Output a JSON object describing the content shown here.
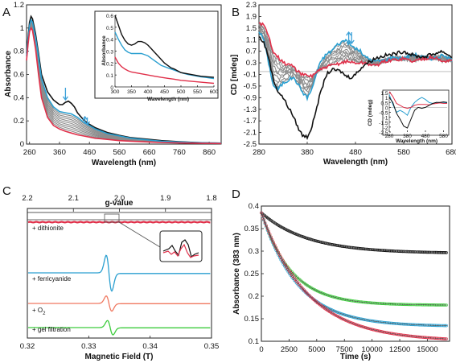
{
  "panels": {
    "A": {
      "label": "A",
      "xlabel": "Wavelength (nm)",
      "ylabel": "Absorbance",
      "xticks": [
        "260",
        "360",
        "460",
        "560",
        "660",
        "760",
        "860"
      ],
      "yticks": [
        "0",
        "0.2",
        "0.4",
        "0.6",
        "0.8",
        "1",
        "1.2"
      ],
      "inset": {
        "xlabel": "Wavelength (nm)",
        "ylabel": "Absorbance",
        "xticks": [
          "300",
          "350",
          "400",
          "450",
          "500",
          "550",
          "600"
        ],
        "yticks": [
          "0",
          "0.1",
          "0.2",
          "0.3",
          "0.4",
          "0.5",
          "0.6"
        ]
      }
    },
    "B": {
      "label": "B",
      "xlabel": "Wavelength (nm)",
      "ylabel": "CD [mdeg]",
      "xticks": [
        "280",
        "380",
        "480",
        "580",
        "680"
      ],
      "yticks": [
        "2.3",
        "1.9",
        "1.5",
        "1.1",
        "0.7",
        "0.3",
        "-0.1",
        "-0.5",
        "-0.9",
        "-1.3",
        "-1.7",
        "-2.1",
        "-2.5"
      ],
      "inset": {
        "xlabel": "Wavelength (nm)",
        "ylabel": "CD (mdeg)",
        "xticks": [
          "280",
          "380",
          "480",
          "580"
        ],
        "yticks": [
          "1.5",
          "1",
          "0.5",
          "0",
          "-0.5",
          "-1",
          "-1.5",
          "-2",
          "-2.5"
        ]
      }
    },
    "C": {
      "label": "C",
      "top_axis_label": "g-value",
      "top_ticks": [
        "2.2",
        "2.1",
        "2.0",
        "1.9",
        "1.8"
      ],
      "xlabel": "Magnetic Field (T)",
      "xticks": [
        "0.32",
        "0.33",
        "0.34",
        "0.35"
      ],
      "traces": [
        {
          "label": "+ dithionite",
          "color": "#c0283c"
        },
        {
          "label": "+ ferricyanide",
          "color": "#2a9fd0"
        },
        {
          "label": "+ O",
          "sub": "2",
          "color": "#f07860"
        },
        {
          "label": "+ gel filtration",
          "color": "#3ccc3c"
        }
      ]
    },
    "D": {
      "label": "D",
      "xlabel": "Time (s)",
      "ylabel": "Absorbance (383 nm)",
      "xticks": [
        "0",
        "2500",
        "5000",
        "7500",
        "10000",
        "12500",
        "15000"
      ],
      "yticks": [
        "0.1",
        "0.15",
        "0.2",
        "0.25",
        "0.3",
        "0.35",
        "0.4"
      ]
    }
  },
  "colors": {
    "black": "#111111",
    "gray": "#8c8c8c",
    "blue": "#2a9fd0",
    "red": "#e0304a",
    "green": "#3ccc3c",
    "salmon": "#f07860",
    "arrow": "#3aa0d8"
  },
  "chart_data": [
    {
      "panel": "A",
      "type": "line",
      "xlim": [
        250,
        900
      ],
      "ylim": [
        0,
        1.2
      ],
      "series": [
        {
          "color": "black",
          "x": [
            250,
            255,
            260,
            265,
            270,
            280,
            290,
            300,
            320,
            340,
            360,
            370,
            380,
            390,
            400,
            410,
            420,
            440,
            460,
            480,
            500,
            520,
            560,
            600,
            660,
            700,
            760,
            800,
            860,
            900
          ],
          "y": [
            0.78,
            0.92,
            1.05,
            1.1,
            1.08,
            0.95,
            0.78,
            0.6,
            0.45,
            0.38,
            0.34,
            0.34,
            0.36,
            0.37,
            0.35,
            0.32,
            0.27,
            0.21,
            0.17,
            0.14,
            0.12,
            0.1,
            0.075,
            0.055,
            0.04,
            0.03,
            0.02,
            0.015,
            0.01,
            0.008
          ]
        },
        {
          "color": "blue",
          "x": [
            250,
            255,
            260,
            265,
            270,
            280,
            290,
            300,
            320,
            340,
            360,
            380,
            400,
            420,
            440,
            460,
            480,
            500,
            520,
            560,
            600,
            660,
            700,
            760,
            800,
            860,
            900
          ],
          "y": [
            0.76,
            0.9,
            1.02,
            1.07,
            1.05,
            0.92,
            0.75,
            0.56,
            0.4,
            0.32,
            0.28,
            0.27,
            0.26,
            0.23,
            0.19,
            0.16,
            0.13,
            0.11,
            0.09,
            0.07,
            0.05,
            0.035,
            0.025,
            0.018,
            0.013,
            0.01,
            0.008
          ]
        },
        {
          "color": "red",
          "x": [
            250,
            255,
            260,
            265,
            270,
            280,
            290,
            300,
            320,
            340,
            360,
            380,
            400,
            420,
            440,
            460,
            480,
            500,
            520,
            560,
            600,
            660,
            700,
            760,
            800,
            860,
            900
          ],
          "y": [
            0.72,
            0.86,
            0.97,
            1.0,
            0.98,
            0.82,
            0.6,
            0.4,
            0.23,
            0.16,
            0.13,
            0.11,
            0.095,
            0.08,
            0.07,
            0.06,
            0.05,
            0.045,
            0.04,
            0.03,
            0.025,
            0.018,
            0.014,
            0.01,
            0.008,
            0.006,
            0.005
          ]
        }
      ],
      "gray_band": {
        "count": 9,
        "from": "red",
        "to": "blue"
      }
    },
    {
      "panel": "A-inset",
      "type": "line",
      "xlim": [
        300,
        600
      ],
      "ylim": [
        0,
        0.6
      ],
      "series": [
        {
          "color": "black",
          "x": [
            300,
            310,
            320,
            330,
            340,
            350,
            360,
            370,
            380,
            390,
            400,
            410,
            420,
            430,
            440,
            450,
            460,
            470,
            480,
            500,
            520,
            540,
            560,
            580,
            600
          ],
          "y": [
            0.6,
            0.52,
            0.44,
            0.39,
            0.36,
            0.35,
            0.36,
            0.38,
            0.38,
            0.37,
            0.35,
            0.32,
            0.29,
            0.26,
            0.23,
            0.2,
            0.18,
            0.16,
            0.15,
            0.12,
            0.11,
            0.1,
            0.09,
            0.085,
            0.08
          ]
        },
        {
          "color": "blue",
          "x": [
            300,
            310,
            320,
            330,
            340,
            350,
            360,
            370,
            380,
            390,
            400,
            410,
            420,
            430,
            440,
            460,
            480,
            500,
            520,
            540,
            560,
            580,
            600
          ],
          "y": [
            0.46,
            0.4,
            0.35,
            0.31,
            0.29,
            0.28,
            0.28,
            0.28,
            0.28,
            0.27,
            0.26,
            0.24,
            0.22,
            0.2,
            0.18,
            0.16,
            0.14,
            0.12,
            0.105,
            0.095,
            0.085,
            0.078,
            0.07
          ]
        },
        {
          "color": "red",
          "x": [
            300,
            310,
            320,
            330,
            340,
            350,
            360,
            380,
            400,
            420,
            440,
            460,
            480,
            500,
            520,
            540,
            560,
            580,
            600
          ],
          "y": [
            0.25,
            0.2,
            0.17,
            0.15,
            0.135,
            0.125,
            0.12,
            0.11,
            0.1,
            0.09,
            0.08,
            0.072,
            0.065,
            0.055,
            0.05,
            0.045,
            0.04,
            0.035,
            0.03
          ]
        }
      ]
    },
    {
      "panel": "B",
      "type": "line",
      "xlim": [
        280,
        680
      ],
      "ylim": [
        -2.5,
        2.3
      ],
      "series": [
        {
          "color": "black",
          "x": [
            280,
            290,
            300,
            310,
            320,
            330,
            340,
            350,
            360,
            370,
            380,
            390,
            400,
            410,
            420,
            430,
            440,
            450,
            460,
            470,
            480,
            490,
            500,
            510,
            520,
            540,
            560,
            580,
            600,
            620,
            640,
            660,
            680
          ],
          "y": [
            1.2,
            1.0,
            0.5,
            -0.3,
            -0.7,
            -0.9,
            -1.2,
            -1.5,
            -1.9,
            -2.2,
            -2.25,
            -1.9,
            -1.2,
            -0.6,
            -0.1,
            0.05,
            0.05,
            0.0,
            -0.15,
            -0.2,
            -0.1,
            0.1,
            0.25,
            0.35,
            0.45,
            0.55,
            0.6,
            0.7,
            0.55,
            0.5,
            0.6,
            0.7,
            0.5
          ]
        },
        {
          "color": "blue",
          "x": [
            280,
            290,
            300,
            310,
            320,
            330,
            340,
            350,
            360,
            370,
            380,
            390,
            400,
            410,
            420,
            430,
            440,
            450,
            460,
            470,
            480,
            490,
            500,
            520,
            540,
            560,
            580,
            600,
            620,
            640,
            660,
            680
          ],
          "y": [
            1.4,
            1.1,
            0.3,
            -0.5,
            -0.6,
            -0.4,
            -0.3,
            -0.2,
            -0.4,
            -0.7,
            -0.9,
            -0.6,
            0.0,
            0.4,
            0.6,
            0.7,
            0.9,
            1.0,
            1.1,
            0.9,
            0.8,
            0.7,
            0.5,
            0.35,
            0.4,
            0.5,
            0.45,
            0.6,
            0.5,
            0.45,
            0.55,
            0.4
          ]
        },
        {
          "color": "red",
          "x": [
            280,
            290,
            300,
            310,
            320,
            330,
            340,
            350,
            360,
            370,
            380,
            390,
            400,
            420,
            440,
            460,
            480,
            500,
            520,
            540,
            560,
            580,
            600,
            620,
            640,
            660,
            680
          ],
          "y": [
            1.7,
            1.6,
            1.2,
            0.7,
            0.5,
            0.3,
            0.25,
            0.2,
            0.0,
            -0.1,
            -0.15,
            -0.15,
            0.0,
            0.15,
            0.25,
            0.35,
            0.3,
            0.3,
            0.2,
            0.35,
            0.4,
            0.45,
            0.35,
            0.45,
            0.5,
            0.35,
            0.4
          ]
        }
      ],
      "gray_band": {
        "count": 8,
        "from": "red",
        "to": "blue"
      }
    },
    {
      "panel": "B-inset",
      "type": "line",
      "xlim": [
        280,
        600
      ],
      "ylim": [
        -2.5,
        1.5
      ],
      "series": [
        {
          "color": "black",
          "x": [
            280,
            300,
            320,
            340,
            360,
            380,
            400,
            420,
            440,
            460,
            480,
            500,
            520,
            540,
            560,
            580,
            600
          ],
          "y": [
            1.0,
            0.5,
            -0.6,
            -1.2,
            -1.9,
            -2.1,
            -1.2,
            -0.3,
            0.0,
            -0.1,
            0.0,
            0.2,
            0.4,
            0.5,
            0.5,
            0.55,
            0.5
          ]
        },
        {
          "color": "blue",
          "x": [
            280,
            300,
            320,
            340,
            360,
            380,
            400,
            420,
            440,
            460,
            480,
            500,
            520,
            540,
            560,
            580,
            600
          ],
          "y": [
            1.3,
            0.3,
            -0.5,
            -0.3,
            -0.5,
            -0.8,
            0.0,
            0.5,
            0.8,
            1.0,
            0.8,
            0.5,
            0.4,
            0.5,
            0.45,
            0.5,
            0.45
          ]
        },
        {
          "color": "red",
          "x": [
            280,
            300,
            320,
            340,
            360,
            380,
            400,
            420,
            440,
            460,
            480,
            500,
            520,
            540,
            560,
            580,
            600
          ],
          "y": [
            1.6,
            1.1,
            0.4,
            0.2,
            0.0,
            -0.1,
            0.0,
            0.2,
            0.3,
            0.3,
            0.3,
            0.25,
            0.35,
            0.4,
            0.45,
            0.4,
            0.4
          ]
        }
      ]
    },
    {
      "panel": "C",
      "type": "line",
      "xlim": [
        0.32,
        0.35
      ],
      "top_axis": {
        "name": "g-value",
        "ticks": [
          2.2,
          2.1,
          2.0,
          1.9,
          1.8
        ]
      },
      "series": [
        {
          "color": "red",
          "shape": "flat",
          "center": 0.3335
        },
        {
          "color": "blue",
          "shape": "derivative",
          "center": 0.3333,
          "amplitude": 1.0
        },
        {
          "color": "salmon",
          "shape": "derivative",
          "center": 0.3333,
          "amplitude": 0.45
        },
        {
          "color": "green",
          "shape": "derivative",
          "center": 0.3335,
          "amplitude": 0.45
        }
      ]
    },
    {
      "panel": "D",
      "type": "scatter",
      "xlim": [
        0,
        17000
      ],
      "ylim": [
        0.1,
        0.4
      ],
      "series": [
        {
          "color": "black",
          "y0": 0.385,
          "yinf": 0.295,
          "tau": 4200
        },
        {
          "color": "green",
          "y0": 0.385,
          "yinf": 0.18,
          "tau": 2700
        },
        {
          "color": "blue",
          "y0": 0.385,
          "yinf": 0.133,
          "tau": 3300
        },
        {
          "color": "red",
          "y0": 0.385,
          "yinf": 0.1,
          "tau": 4200
        }
      ]
    }
  ]
}
